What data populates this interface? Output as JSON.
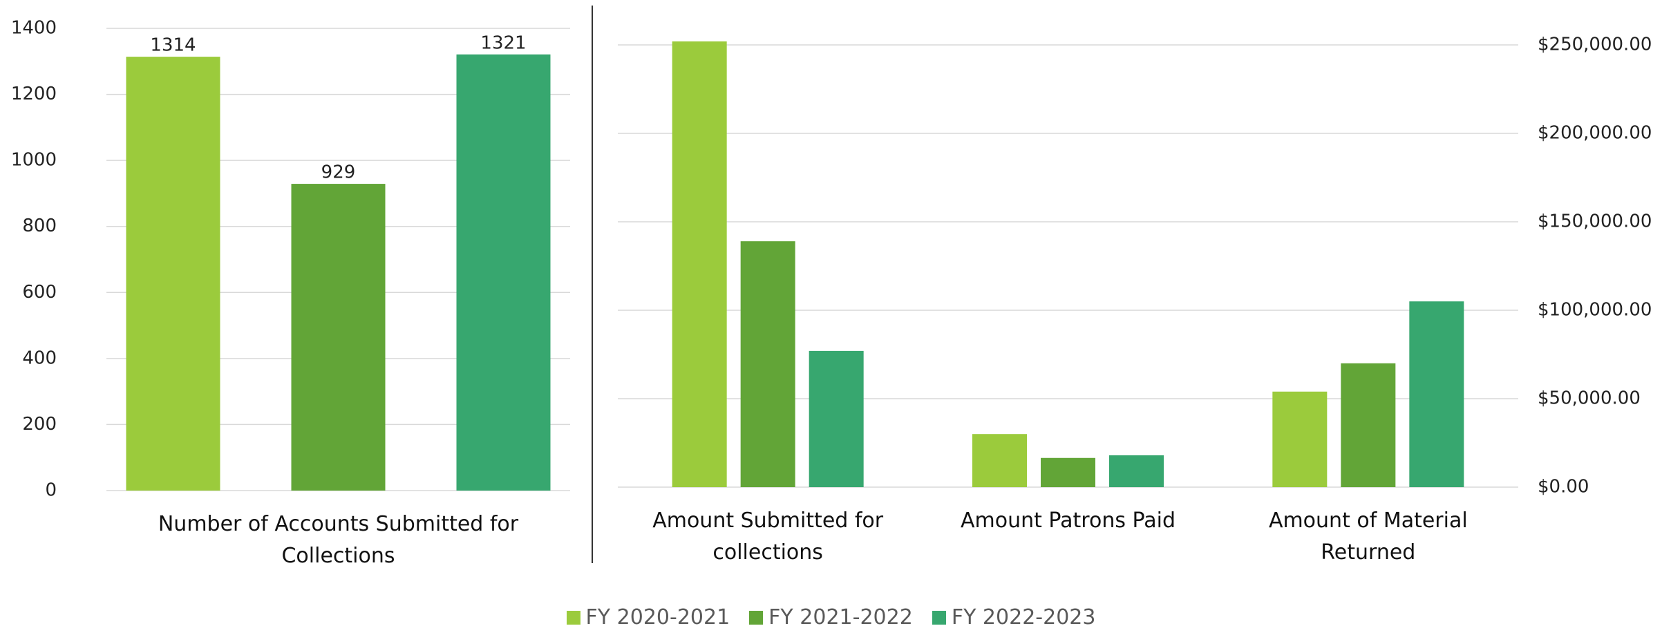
{
  "chart_data": [
    {
      "type": "bar",
      "categories": [
        "Number of Accounts Submitted for Collections"
      ],
      "series": [
        {
          "name": "FY 2020-2021",
          "color": "#9bcb3c",
          "values": [
            1314
          ]
        },
        {
          "name": "FY 2021-2022",
          "color": "#62a537",
          "values": [
            929
          ]
        },
        {
          "name": "FY 2022-2023",
          "color": "#37a76f",
          "values": [
            1321
          ]
        }
      ],
      "ylim": [
        0,
        1400
      ],
      "yticks": [
        0,
        200,
        400,
        600,
        800,
        1000,
        1200,
        1400
      ],
      "grid": true,
      "data_labels": true,
      "legend": "bottom"
    },
    {
      "type": "bar",
      "categories": [
        "Amount Submitted for collections",
        "Amount Patrons Paid",
        "Amount of Material Returned"
      ],
      "series": [
        {
          "color": "#9bcb3c",
          "values": [
            252000,
            30000,
            54000
          ],
          "axis": "y2"
        },
        {
          "color": "#62a537",
          "values": [
            139000,
            16500,
            70000
          ],
          "axis": "y2"
        },
        {
          "color": "#37a76f",
          "values": [
            77000,
            18000,
            105000
          ],
          "axis": "y2"
        }
      ],
      "y2lim": [
        0,
        250000
      ],
      "y2ticks": [
        {
          "value": 0,
          "label": "$0.00"
        },
        {
          "value": 50000,
          "label": "$50,000.00"
        },
        {
          "value": 100000,
          "label": "$100,000.00"
        },
        {
          "value": 150000,
          "label": "$150,000.00"
        },
        {
          "value": 200000,
          "label": "$200,000.00"
        },
        {
          "value": 250000,
          "label": "$250,000.00"
        }
      ],
      "grid": true
    }
  ]
}
